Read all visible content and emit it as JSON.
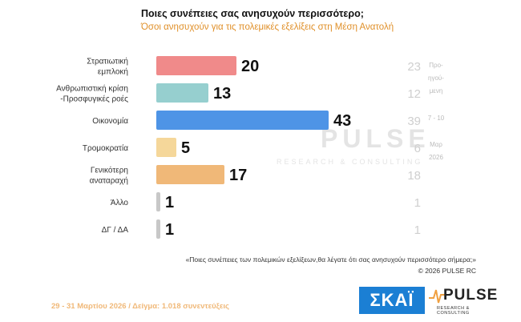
{
  "header": {
    "title": "Ποιες συνέπειες σας ανησυχούν περισσότερο;",
    "subtitle": "Όσοι ανησυχούν για τις πολεμικές εξελίξεις στη Μέση Ανατολή"
  },
  "chart_data": {
    "type": "bar",
    "orientation": "horizontal",
    "categories": [
      [
        "Στρατιωτική",
        "εμπλοκή"
      ],
      [
        "Ανθρωπιστική κρίση",
        "-Προσφυγικές ροές"
      ],
      [
        "Οικονομία"
      ],
      [
        "Τρομοκρατία"
      ],
      [
        "Γενικότερη",
        "αναταραχή"
      ],
      [
        "Άλλο"
      ],
      [
        "ΔΓ / ΔΑ"
      ]
    ],
    "series": [
      {
        "values": [
          20,
          13,
          43,
          5,
          17,
          1,
          1
        ]
      },
      {
        "values": [
          23,
          12,
          39,
          6,
          18,
          1,
          1
        ]
      }
    ],
    "previous_label": [
      "Προ-",
      "ηγού-",
      "μενη",
      "7 - 10",
      "Μαρ",
      "2026"
    ],
    "colors": [
      "#f08a8a",
      "#96cfcf",
      "#4e94e6",
      "#f5d79a",
      "#f0b878",
      "#c8c8c8",
      "#c8c8c8"
    ],
    "xlim": [
      0,
      45
    ],
    "watermark": {
      "name": "PULSE",
      "sub": "RESEARCH & CONSULTING"
    }
  },
  "footer": {
    "question": "«Ποιες συνέπειες των πολεμικών εξελίξεων,θα λέγατε ότι σας ανησυχούν περισσότερο σήμερα;»",
    "copyright": "© 2026 PULSE RC",
    "fieldwork": "29 - 31 Μαρτίου 2026  /  Δείγμα: 1.018 συνεντεύξεις"
  },
  "logos": {
    "skai": "ΣΚΑΪ",
    "pulse": "PULSE",
    "pulse_sub": "RESEARCH & CONSULTING",
    "pulse_icon": "pulse-heartbeat-icon"
  }
}
